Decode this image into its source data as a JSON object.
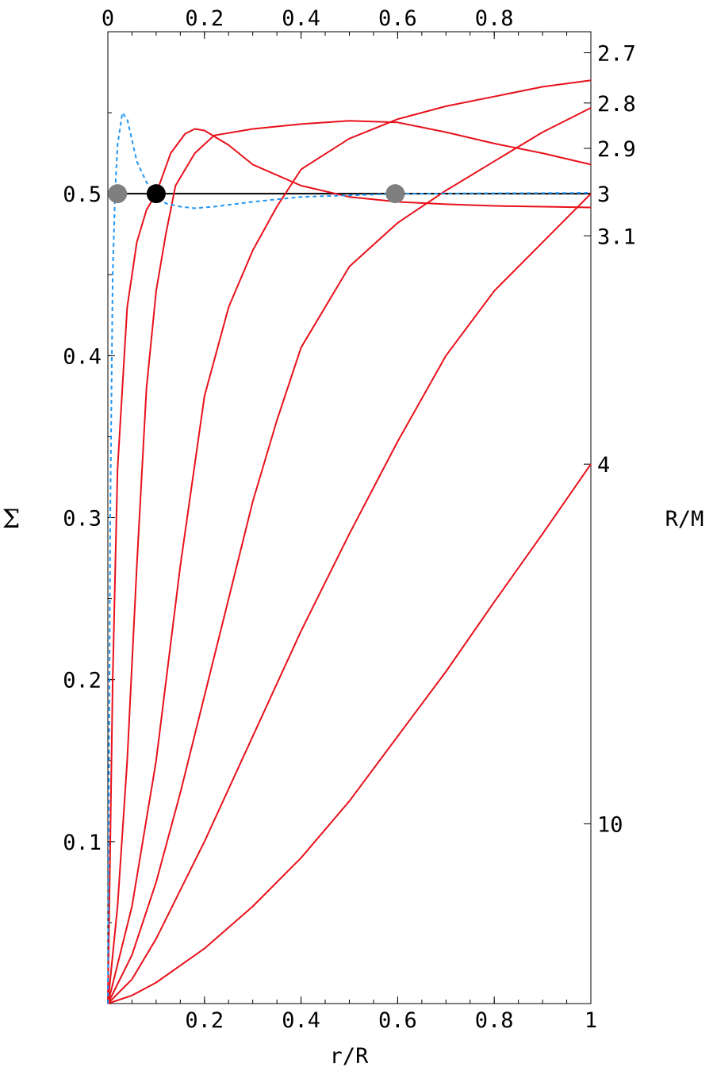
{
  "chart_data": {
    "type": "line",
    "xlabel": "r/R",
    "ylabel": "Σ",
    "right_label": "R/M",
    "xlim": [
      0,
      1
    ],
    "ylim": [
      0,
      0.6
    ],
    "x_ticks_bottom": [
      "0.2",
      "0.4",
      "0.6",
      "0.8",
      "1"
    ],
    "x_ticks_top": [
      "0",
      "0.2",
      "0.4",
      "0.6",
      "0.8"
    ],
    "y_ticks_left": [
      "0.1",
      "0.2",
      "0.3",
      "0.4",
      "0.5"
    ],
    "right_axis_ticks": [
      {
        "label": "2.7",
        "sigma": 0.587
      },
      {
        "label": "2.8",
        "sigma": 0.556
      },
      {
        "label": "2.9",
        "sigma": 0.528
      },
      {
        "label": "3",
        "sigma": 0.5
      },
      {
        "label": "3.1",
        "sigma": 0.474
      },
      {
        "label": "4",
        "sigma": 0.333
      },
      {
        "label": "10",
        "sigma": 0.111
      }
    ],
    "colors": {
      "curves": "#e8111b",
      "dashed": "#2196f3",
      "reference_line": "#000000",
      "marker_gray": "#7f7f7f",
      "marker_black": "#000000"
    },
    "series": [
      {
        "style": "solid",
        "color": "red",
        "points": [
          [
            0,
            0
          ],
          [
            0.01,
            0.2
          ],
          [
            0.02,
            0.33
          ],
          [
            0.04,
            0.43
          ],
          [
            0.06,
            0.47
          ],
          [
            0.08,
            0.49
          ],
          [
            0.1,
            0.5
          ],
          [
            0.13,
            0.525
          ],
          [
            0.16,
            0.537
          ],
          [
            0.18,
            0.54
          ],
          [
            0.2,
            0.539
          ],
          [
            0.25,
            0.53
          ],
          [
            0.3,
            0.518
          ],
          [
            0.4,
            0.505
          ],
          [
            0.5,
            0.498
          ],
          [
            0.6,
            0.495
          ],
          [
            0.7,
            0.4935
          ],
          [
            0.8,
            0.4925
          ],
          [
            0.9,
            0.492
          ],
          [
            1.0,
            0.4915
          ]
        ]
      },
      {
        "style": "solid",
        "color": "red",
        "points": [
          [
            0,
            0
          ],
          [
            0.02,
            0.06
          ],
          [
            0.04,
            0.15
          ],
          [
            0.06,
            0.27
          ],
          [
            0.08,
            0.38
          ],
          [
            0.1,
            0.44
          ],
          [
            0.12,
            0.475
          ],
          [
            0.14,
            0.505
          ],
          [
            0.18,
            0.525
          ],
          [
            0.22,
            0.536
          ],
          [
            0.3,
            0.54
          ],
          [
            0.4,
            0.543
          ],
          [
            0.5,
            0.545
          ],
          [
            0.6,
            0.544
          ],
          [
            0.7,
            0.538
          ],
          [
            0.8,
            0.531
          ],
          [
            0.9,
            0.525
          ],
          [
            1.0,
            0.518
          ]
        ]
      },
      {
        "style": "solid",
        "color": "red",
        "points": [
          [
            0,
            0
          ],
          [
            0.05,
            0.06
          ],
          [
            0.1,
            0.15
          ],
          [
            0.15,
            0.27
          ],
          [
            0.2,
            0.375
          ],
          [
            0.25,
            0.43
          ],
          [
            0.3,
            0.465
          ],
          [
            0.35,
            0.492
          ],
          [
            0.4,
            0.515
          ],
          [
            0.5,
            0.534
          ],
          [
            0.6,
            0.546
          ],
          [
            0.7,
            0.554
          ],
          [
            0.8,
            0.56
          ],
          [
            0.9,
            0.566
          ],
          [
            1.0,
            0.57
          ]
        ]
      },
      {
        "style": "solid",
        "color": "red",
        "points": [
          [
            0,
            0
          ],
          [
            0.05,
            0.03
          ],
          [
            0.1,
            0.075
          ],
          [
            0.15,
            0.13
          ],
          [
            0.2,
            0.19
          ],
          [
            0.25,
            0.25
          ],
          [
            0.3,
            0.31
          ],
          [
            0.35,
            0.36
          ],
          [
            0.4,
            0.405
          ],
          [
            0.5,
            0.455
          ],
          [
            0.6,
            0.482
          ],
          [
            0.7,
            0.502
          ],
          [
            0.8,
            0.52
          ],
          [
            0.9,
            0.538
          ],
          [
            1.0,
            0.553
          ]
        ]
      },
      {
        "style": "solid",
        "color": "red",
        "points": [
          [
            0,
            0
          ],
          [
            0.05,
            0.015
          ],
          [
            0.1,
            0.04
          ],
          [
            0.15,
            0.07
          ],
          [
            0.2,
            0.1
          ],
          [
            0.3,
            0.165
          ],
          [
            0.4,
            0.23
          ],
          [
            0.5,
            0.29
          ],
          [
            0.6,
            0.347
          ],
          [
            0.7,
            0.4
          ],
          [
            0.8,
            0.44
          ],
          [
            0.9,
            0.47
          ],
          [
            1.0,
            0.5
          ]
        ]
      },
      {
        "style": "solid",
        "color": "red",
        "points": [
          [
            0,
            0
          ],
          [
            0.05,
            0.005
          ],
          [
            0.1,
            0.013
          ],
          [
            0.2,
            0.034
          ],
          [
            0.3,
            0.06
          ],
          [
            0.4,
            0.09
          ],
          [
            0.5,
            0.125
          ],
          [
            0.6,
            0.165
          ],
          [
            0.7,
            0.205
          ],
          [
            0.8,
            0.248
          ],
          [
            0.9,
            0.29
          ],
          [
            1.0,
            0.333
          ]
        ]
      },
      {
        "style": "dashed",
        "color": "blue",
        "points": [
          [
            0,
            0
          ],
          [
            0.005,
            0.3
          ],
          [
            0.01,
            0.45
          ],
          [
            0.015,
            0.5
          ],
          [
            0.02,
            0.53
          ],
          [
            0.03,
            0.55
          ],
          [
            0.04,
            0.546
          ],
          [
            0.06,
            0.52
          ],
          [
            0.08,
            0.507
          ],
          [
            0.1,
            0.5
          ],
          [
            0.12,
            0.494
          ],
          [
            0.15,
            0.492
          ],
          [
            0.18,
            0.491
          ],
          [
            0.22,
            0.492
          ],
          [
            0.3,
            0.495
          ],
          [
            0.4,
            0.498
          ],
          [
            0.5,
            0.499
          ],
          [
            0.6,
            0.5
          ],
          [
            0.8,
            0.5003
          ],
          [
            1.0,
            0.5005
          ]
        ]
      }
    ],
    "reference_line": {
      "y": 0.5,
      "x_from": 0,
      "x_to": 1
    },
    "markers": [
      {
        "x": 0.02,
        "y": 0.5,
        "color": "gray"
      },
      {
        "x": 0.1,
        "y": 0.5,
        "color": "black"
      },
      {
        "x": 0.595,
        "y": 0.5,
        "color": "gray"
      }
    ]
  }
}
